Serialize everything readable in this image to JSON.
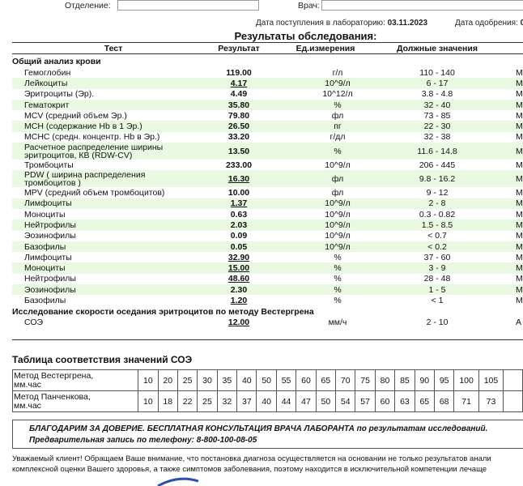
{
  "top": {
    "department_label": "Отделение:",
    "doctor_label": "Врач:",
    "department_value": "",
    "doctor_value": ""
  },
  "dates": {
    "received_label": "Дата поступления в лабораторию:",
    "received_value": "03.11.2023",
    "approved_label": "Дата одобрения:",
    "approved_value": "0"
  },
  "title": "Результаты обследования:",
  "columns": {
    "test": "Тест",
    "result": "Результат",
    "unit": "Ед.измерения",
    "ref": "Должные значения"
  },
  "sections": [
    {
      "name": "Общий анализ крови",
      "rows": [
        {
          "name": "Гемоглобин",
          "result": "119.00",
          "unit": "г/л",
          "ref": "110 - 140",
          "flag": false,
          "m": "М"
        },
        {
          "name": "Лейкоциты",
          "result": "4.17",
          "unit": "10^9/л",
          "ref": "6 - 17",
          "flag": true,
          "m": "М"
        },
        {
          "name": "Эритроциты (Эр).",
          "result": "4.49",
          "unit": "10^12/л",
          "ref": "3.8 - 4.8",
          "flag": false,
          "m": "М"
        },
        {
          "name": "Гематокрит",
          "result": "35.80",
          "unit": "%",
          "ref": "32 - 40",
          "flag": false,
          "m": "М"
        },
        {
          "name": "MCV (средний объем Эр.)",
          "result": "79.80",
          "unit": "фл",
          "ref": "73 - 85",
          "flag": false,
          "m": "М"
        },
        {
          "name": "MCH (содержание Hb в 1 Эр.)",
          "result": "26.50",
          "unit": "пг",
          "ref": "22 - 30",
          "flag": false,
          "m": "М"
        },
        {
          "name": "MCHC (средн. концентр. Hb в Эр.)",
          "result": "33.20",
          "unit": "г/дл",
          "ref": "32 - 38",
          "flag": false,
          "m": "М"
        },
        {
          "name": "Расчетное распределение ширины\nэритроцитов, КВ (RDW-CV)",
          "result": "13.50",
          "unit": "%",
          "ref": "11.6 - 14.8",
          "flag": false,
          "m": "М"
        },
        {
          "name": "Тромбоциты",
          "result": "233.00",
          "unit": "10^9/л",
          "ref": "206 - 445",
          "flag": false,
          "m": "М"
        },
        {
          "name": "PDW ( ширина распределения\nтромбоцитов )",
          "result": "16.30",
          "unit": "фл",
          "ref": "9.8 - 16.2",
          "flag": true,
          "m": "М"
        },
        {
          "name": "MPV (средний объем тромбоцитов)",
          "result": "10.00",
          "unit": "фл",
          "ref": "9 - 12",
          "flag": false,
          "m": "М"
        },
        {
          "name": "Лимфоциты",
          "result": "1.37",
          "unit": "10^9/л",
          "ref": "2 - 8",
          "flag": true,
          "m": "М"
        },
        {
          "name": "Моноциты",
          "result": "0.63",
          "unit": "10^9/л",
          "ref": "0.3 - 0.82",
          "flag": false,
          "m": "М"
        },
        {
          "name": "Нейтрофилы",
          "result": "2.03",
          "unit": "10^9/л",
          "ref": "1.5 - 8.5",
          "flag": false,
          "m": "М"
        },
        {
          "name": "Эозинофилы",
          "result": "0.09",
          "unit": "10^9/л",
          "ref": "< 0.7",
          "flag": false,
          "m": "М"
        },
        {
          "name": "Базофилы",
          "result": "0.05",
          "unit": "10^9/л",
          "ref": "< 0.2",
          "flag": false,
          "m": "М"
        },
        {
          "name": "Лимфоциты",
          "result": "32.90",
          "unit": "%",
          "ref": "37 - 60",
          "flag": true,
          "m": "М"
        },
        {
          "name": "Моноциты",
          "result": "15.00",
          "unit": "%",
          "ref": "3 - 9",
          "flag": true,
          "m": "М"
        },
        {
          "name": "Нейтрофилы",
          "result": "48.60",
          "unit": "%",
          "ref": "28 - 48",
          "flag": true,
          "m": "М"
        },
        {
          "name": "Эозинофилы",
          "result": "2.30",
          "unit": "%",
          "ref": "1 - 5",
          "flag": false,
          "m": "М"
        },
        {
          "name": "Базофилы",
          "result": "1.20",
          "unit": "%",
          "ref": "< 1",
          "flag": true,
          "m": "М"
        }
      ]
    },
    {
      "name": "Исследование скорости оседания эритроцитов по методу Вестергрена",
      "rows": [
        {
          "name": "СОЭ",
          "result": "12.00",
          "unit": "мм/ч",
          "ref": "2 - 10",
          "flag": true,
          "m": "А"
        }
      ]
    }
  ],
  "esr_table": {
    "title": "Таблица соответствия значений СОЭ",
    "rows": [
      {
        "label": "Метод Вестергрена,\nмм.час",
        "values": [
          "10",
          "20",
          "25",
          "30",
          "35",
          "40",
          "50",
          "55",
          "60",
          "65",
          "70",
          "75",
          "80",
          "85",
          "90",
          "95",
          "100",
          "105"
        ]
      },
      {
        "label": "Метод Панченкова,\nмм.час",
        "values": [
          "10",
          "18",
          "22",
          "25",
          "32",
          "37",
          "40",
          "44",
          "47",
          "50",
          "54",
          "57",
          "60",
          "63",
          "65",
          "68",
          "71",
          "73"
        ]
      }
    ]
  },
  "notice": {
    "line1": "БЛАГОДАРИМ ЗА ДОВЕРИЕ. БЕСПЛАТНАЯ КОНСУЛЬТАЦИЯ ВРАЧА ЛАБОРАНТА по результатам исследований.",
    "line2": "Предварительная запись по телефону: 8-800-100-08-05"
  },
  "footer": {
    "line1": "Уважаемый клиент! Обращаем Ваше внимание, что постановка диагноза осуществляется на основании не только результатов анали",
    "line2": "комплексной оценки Вашего здоровья, а также симптомов заболевания, поэтому находится в исключительной компетенции лечаще"
  },
  "colors": {
    "row_highlight": "#e9f8e1",
    "logo": "#2a4fb0"
  }
}
